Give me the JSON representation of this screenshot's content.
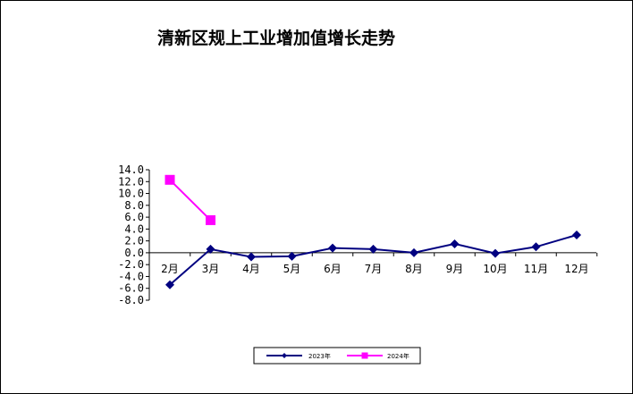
{
  "chart_data": {
    "type": "line",
    "title": "清新区规上工业增加值增长走势",
    "xlabel": "",
    "ylabel": "",
    "categories": [
      "2月",
      "3月",
      "4月",
      "5月",
      "6月",
      "7月",
      "8月",
      "9月",
      "10月",
      "11月",
      "12月"
    ],
    "yticks": [
      "14.0",
      "12.0",
      "10.0",
      "8.0",
      "6.0",
      "4.0",
      "2.0",
      "0.0",
      "-2.0",
      "-4.0",
      "-6.0",
      "-8.0"
    ],
    "ylim": [
      -8,
      14
    ],
    "grid": false,
    "legend_position": "bottom",
    "series": [
      {
        "name": "2023年",
        "color": "#000080",
        "marker": "diamond",
        "values": [
          -5.4,
          0.6,
          -0.7,
          -0.6,
          0.8,
          0.6,
          0.0,
          1.5,
          -0.1,
          1.0,
          3.0
        ]
      },
      {
        "name": "2024年",
        "color": "#ff00ff",
        "marker": "square",
        "values": [
          12.3,
          5.5,
          null,
          null,
          null,
          null,
          null,
          null,
          null,
          null,
          null
        ]
      }
    ]
  }
}
